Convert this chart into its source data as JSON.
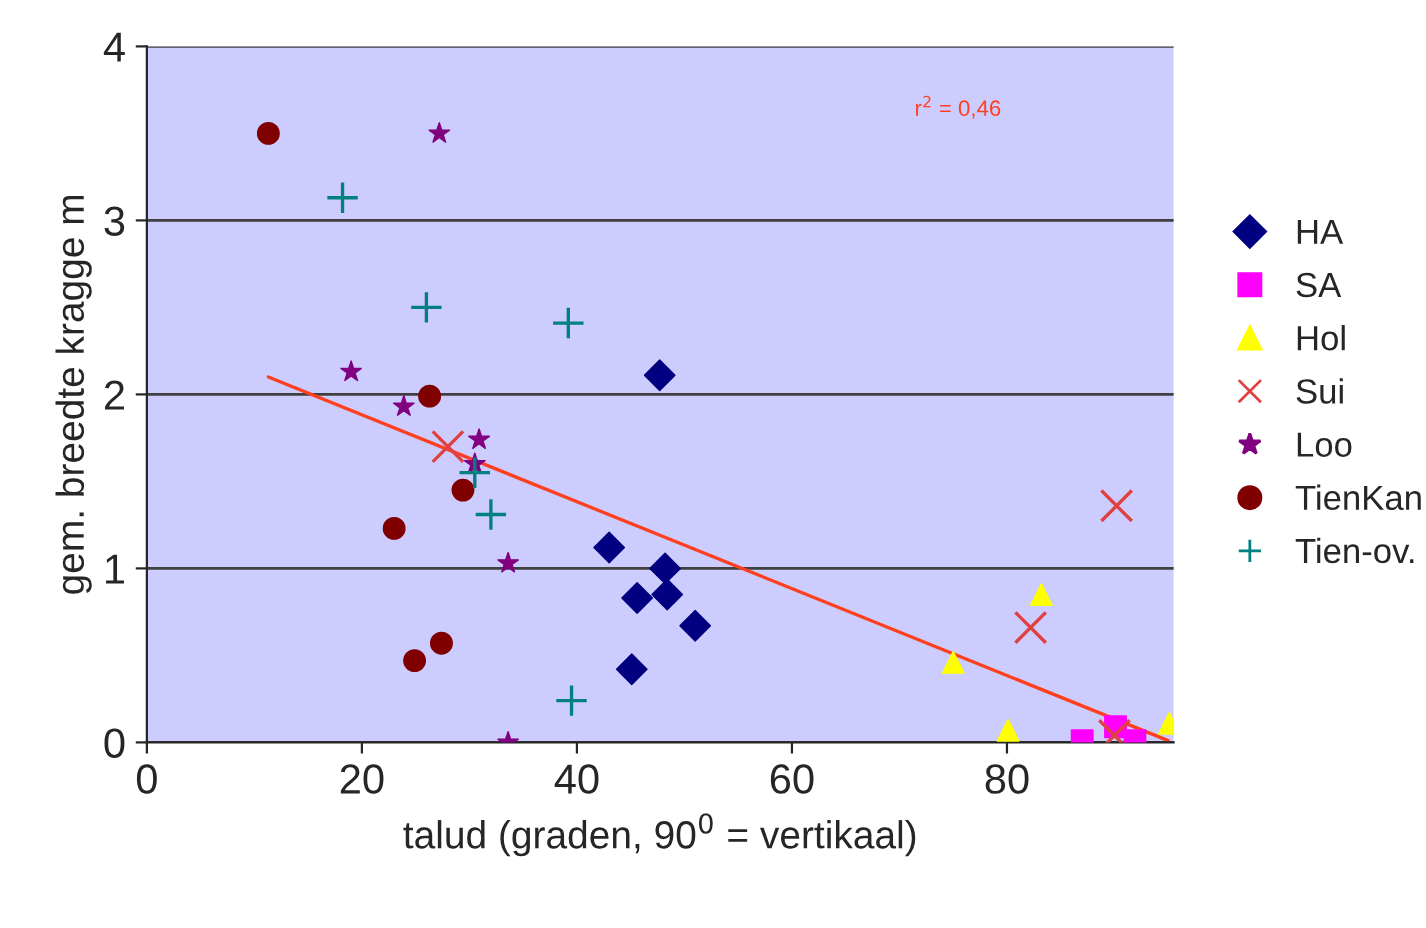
{
  "chart_data": {
    "type": "scatter",
    "xlabel": "talud (graden, 90$^{0}$ = vertikaal)",
    "ylabel": "gem. breedte kragge m",
    "xlim": [
      0,
      95.5
    ],
    "ylim": [
      0,
      4
    ],
    "xticks": [
      0,
      20,
      40,
      60,
      80
    ],
    "yticks": [
      0,
      1,
      2,
      3,
      4
    ],
    "grid": "y",
    "legend": "right",
    "annotations": [
      "r$^{2}$ = 0,46"
    ],
    "series": [
      {
        "name": "HA",
        "color": "#000080",
        "marker": "diamond",
        "x": [
          47.7,
          43.0,
          48.2,
          45.6,
          48.4,
          51.0,
          45.1
        ],
        "values": [
          2.11,
          1.12,
          1.0,
          0.83,
          0.85,
          0.67,
          0.42
        ]
      },
      {
        "name": "SA",
        "color": "#ff00ff",
        "marker": "square",
        "x": [
          87.0,
          90.1,
          91.9
        ],
        "values": [
          0.01,
          0.09,
          0.01
        ]
      },
      {
        "name": "Hol",
        "color": "#ffff00",
        "marker": "triangle",
        "x": [
          75.0,
          83.2,
          80.1,
          95.1
        ],
        "values": [
          0.46,
          0.85,
          0.07,
          0.11
        ]
      },
      {
        "name": "Sui",
        "color": "#e04040",
        "marker": "cross",
        "x": [
          28.0,
          90.2,
          82.2,
          90.0
        ],
        "values": [
          1.7,
          1.36,
          0.66,
          0.04
        ]
      },
      {
        "name": "Loo",
        "color": "#800080",
        "marker": "star",
        "x": [
          27.2,
          19.0,
          23.9,
          30.9,
          30.5,
          33.6,
          33.6
        ],
        "values": [
          3.5,
          2.13,
          1.93,
          1.74,
          1.6,
          1.03,
          0.0
        ]
      },
      {
        "name": "TienKan",
        "color": "#800000",
        "marker": "circle",
        "x": [
          11.3,
          26.3,
          29.4,
          23.0,
          27.4,
          24.9
        ],
        "values": [
          3.5,
          1.99,
          1.45,
          1.23,
          0.57,
          0.47
        ]
      },
      {
        "name": "Tien-ov.",
        "color": "#008080",
        "marker": "plus",
        "x": [
          18.2,
          26.0,
          39.2,
          30.5,
          32.0,
          39.5
        ],
        "values": [
          3.13,
          2.5,
          2.41,
          1.55,
          1.31,
          0.24
        ]
      },
      {
        "type": "line",
        "color": "#ff4020",
        "x": [
          11.3,
          95.0
        ],
        "values": [
          2.1,
          0.01
        ]
      }
    ]
  }
}
